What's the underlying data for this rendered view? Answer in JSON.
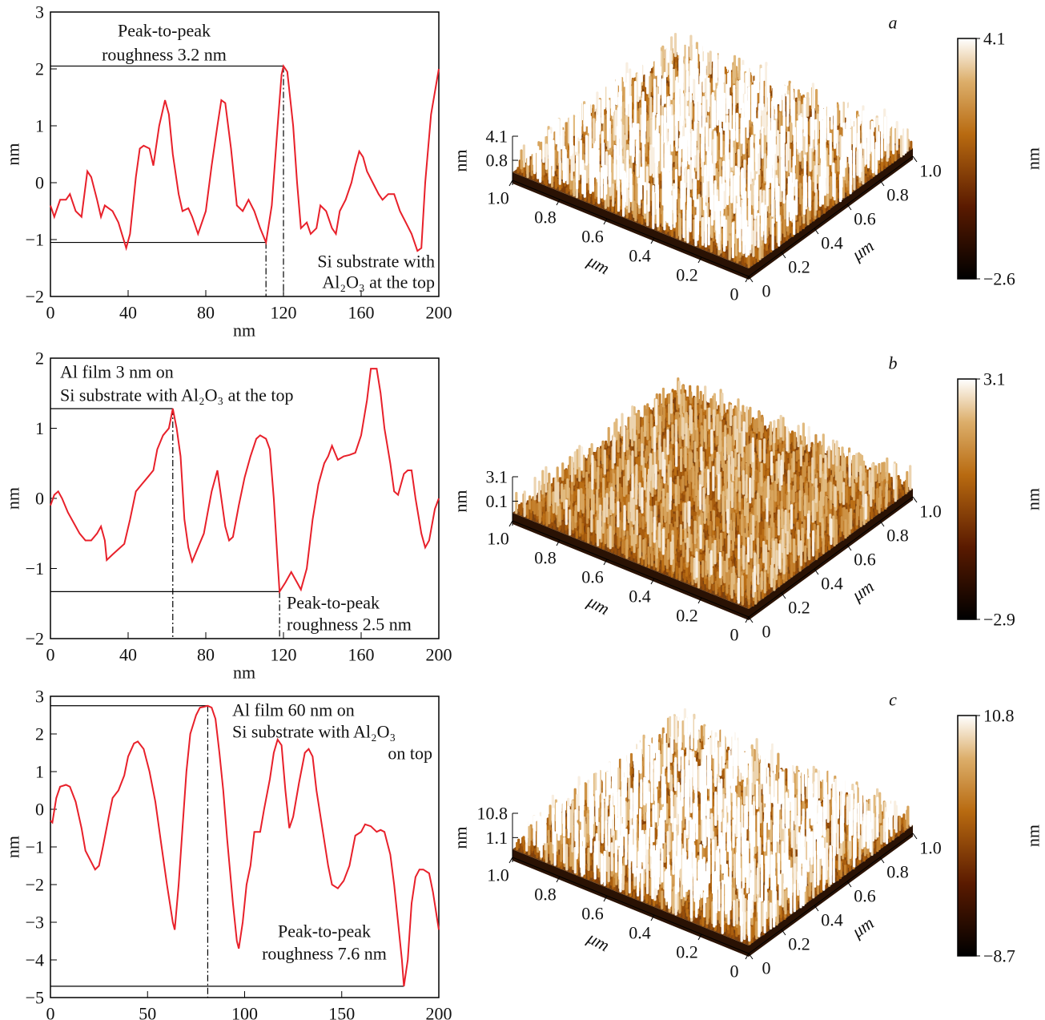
{
  "chart_data": [
    {
      "type": "line",
      "xlabel": "nm",
      "ylabel": "nm",
      "color": "#e8202a",
      "xlim": [
        0,
        200
      ],
      "ylim": [
        -2,
        3
      ],
      "xticks": [
        0,
        40,
        80,
        120,
        160,
        200
      ],
      "yticks": [
        {
          "value": -2,
          "label": "−2"
        },
        {
          "value": -1,
          "label": "−1"
        },
        0,
        1,
        2,
        3
      ],
      "x": [
        0,
        2,
        5,
        8,
        10,
        13,
        16,
        19,
        21,
        24,
        26,
        28,
        32,
        35,
        39,
        41,
        44,
        46,
        48,
        51,
        53,
        56,
        59,
        61,
        63,
        66,
        68,
        71,
        73,
        76,
        80,
        83,
        86,
        88,
        90,
        93,
        96,
        99,
        102,
        105,
        108,
        111,
        114,
        117,
        119,
        120,
        122,
        125,
        127,
        129,
        132,
        134,
        137,
        139,
        142,
        145,
        147,
        149,
        152,
        155,
        157,
        159,
        161,
        163,
        166,
        169,
        171,
        174,
        177,
        180,
        183,
        186,
        189,
        191,
        193,
        196,
        200
      ],
      "values": [
        -0.4,
        -0.6,
        -0.3,
        -0.3,
        -0.2,
        -0.5,
        -0.6,
        0.2,
        0.1,
        -0.3,
        -0.6,
        -0.4,
        -0.5,
        -0.7,
        -1.15,
        -0.9,
        0.1,
        0.6,
        0.65,
        0.6,
        0.3,
        1.0,
        1.45,
        1.2,
        0.5,
        -0.2,
        -0.5,
        -0.45,
        -0.6,
        -0.9,
        -0.5,
        0.3,
        1.0,
        1.45,
        1.4,
        0.6,
        -0.4,
        -0.5,
        -0.3,
        -0.5,
        -0.8,
        -1.05,
        -0.4,
        1.0,
        1.9,
        2.05,
        1.95,
        1.0,
        0.0,
        -0.8,
        -0.7,
        -0.9,
        -0.8,
        -0.4,
        -0.5,
        -0.8,
        -0.9,
        -0.5,
        -0.3,
        0.0,
        0.3,
        0.55,
        0.45,
        0.2,
        0.0,
        -0.2,
        -0.3,
        -0.2,
        -0.2,
        -0.5,
        -0.7,
        -0.9,
        -1.2,
        -1.15,
        0.0,
        1.2,
        2.0
      ],
      "markers": [
        {
          "x": 120,
          "y": 2.05,
          "drop": true
        },
        {
          "x": 111,
          "y": -1.05,
          "drop": true
        }
      ],
      "annotations": [
        [
          "Peak-to-peak",
          "roughness 3.2 nm"
        ],
        [
          "Si substrate with",
          "Al₂O₃ at the top"
        ]
      ]
    },
    {
      "type": "surface",
      "panel_label": "a",
      "x_label": "μm",
      "y_label": "μm",
      "z_label": "nm",
      "xlim": [
        0,
        1
      ],
      "ylim": [
        0,
        1
      ],
      "zlim": [
        -2.6,
        4.1
      ],
      "xticks": [
        {
          "value": 1,
          "label": "1.0"
        },
        0.8,
        0.6,
        0.4,
        0.2,
        0
      ],
      "yticks": [
        0,
        0.2,
        0.4,
        0.6,
        0.8,
        {
          "value": 1,
          "label": "1.0"
        }
      ],
      "zticks": [
        4.1,
        0.8
      ],
      "colorbar_ticks": [
        4.1,
        {
          "value": -2.6,
          "label": "−2.6"
        }
      ],
      "colorbar_label": "nm"
    },
    {
      "type": "line",
      "xlabel": "nm",
      "ylabel": "nm",
      "color": "#e8202a",
      "xlim": [
        0,
        200
      ],
      "ylim": [
        -2,
        2
      ],
      "xticks": [
        0,
        40,
        80,
        120,
        160,
        200
      ],
      "yticks": [
        {
          "value": -2,
          "label": "−2"
        },
        {
          "value": -1,
          "label": "−1"
        },
        0,
        1,
        2
      ],
      "x": [
        0,
        2,
        4,
        6,
        9,
        12,
        15,
        18,
        21,
        24,
        26,
        28,
        29,
        32,
        36,
        38,
        41,
        44,
        47,
        50,
        53,
        55,
        58,
        61,
        63,
        65,
        67,
        69,
        71,
        73,
        76,
        79,
        81,
        83,
        86,
        88,
        90,
        92,
        94,
        97,
        100,
        103,
        106,
        108,
        111,
        113,
        115,
        117,
        118,
        121,
        124,
        127,
        129,
        132,
        135,
        138,
        141,
        143,
        145,
        148,
        151,
        154,
        157,
        160,
        163,
        165,
        168,
        170,
        172,
        175,
        177,
        179,
        182,
        184,
        186,
        188,
        191,
        193,
        195,
        198,
        200
      ],
      "values": [
        -0.1,
        0.05,
        0.1,
        0.0,
        -0.2,
        -0.35,
        -0.5,
        -0.6,
        -0.6,
        -0.5,
        -0.4,
        -0.6,
        -0.88,
        -0.8,
        -0.7,
        -0.65,
        -0.3,
        0.1,
        0.2,
        0.3,
        0.4,
        0.7,
        0.9,
        1.0,
        1.28,
        1.0,
        0.6,
        -0.3,
        -0.7,
        -0.9,
        -0.7,
        -0.5,
        -0.2,
        0.1,
        0.4,
        0.0,
        -0.4,
        -0.6,
        -0.55,
        -0.1,
        0.3,
        0.6,
        0.85,
        0.9,
        0.85,
        0.7,
        0.0,
        -0.9,
        -1.33,
        -1.2,
        -1.05,
        -1.2,
        -1.3,
        -1.0,
        -0.3,
        0.2,
        0.5,
        0.6,
        0.75,
        0.55,
        0.6,
        0.62,
        0.65,
        0.9,
        1.4,
        1.85,
        1.85,
        1.5,
        1.0,
        0.5,
        0.1,
        0.05,
        0.35,
        0.4,
        0.4,
        0.0,
        -0.5,
        -0.7,
        -0.6,
        -0.15,
        0.0
      ],
      "markers": [
        {
          "x": 63,
          "y": 1.28,
          "drop": true
        },
        {
          "x": 118,
          "y": -1.33,
          "drop": true
        }
      ],
      "annotations": [
        [
          "Al film 3 nm on",
          "Si substrate with Al₂O₃ at the top"
        ],
        [
          "Peak-to-peak",
          "roughness 2.5 nm"
        ]
      ]
    },
    {
      "type": "surface",
      "panel_label": "b",
      "x_label": "μm",
      "y_label": "μm",
      "z_label": "nm",
      "xlim": [
        0,
        1
      ],
      "ylim": [
        0,
        1
      ],
      "zlim": [
        -2.9,
        3.1
      ],
      "xticks": [
        {
          "value": 1,
          "label": "1.0"
        },
        0.8,
        0.6,
        0.4,
        0.2,
        0
      ],
      "yticks": [
        0,
        0.2,
        0.4,
        0.6,
        0.8,
        {
          "value": 1,
          "label": "1.0"
        }
      ],
      "zticks": [
        3.1,
        0.1
      ],
      "colorbar_ticks": [
        3.1,
        {
          "value": -2.9,
          "label": "−2.9"
        }
      ],
      "colorbar_label": "nm"
    },
    {
      "type": "line",
      "xlabel": "nm",
      "ylabel": "nm",
      "color": "#e8202a",
      "xlim": [
        0,
        200
      ],
      "ylim": [
        -5,
        3
      ],
      "xticks": [
        0,
        50,
        100,
        150,
        200
      ],
      "yticks": [
        {
          "value": -5,
          "label": "−5"
        },
        {
          "value": -4,
          "label": "−4"
        },
        {
          "value": -3,
          "label": "−3"
        },
        {
          "value": -2,
          "label": "−2"
        },
        {
          "value": -1,
          "label": "−1"
        },
        0,
        1,
        2,
        3
      ],
      "x": [
        0,
        1,
        3,
        5,
        8,
        10,
        13,
        16,
        18,
        20,
        23,
        25,
        27,
        30,
        32,
        35,
        38,
        40,
        43,
        45,
        48,
        51,
        54,
        57,
        60,
        63,
        64,
        66,
        68,
        70,
        72,
        75,
        77,
        79,
        81,
        83,
        85,
        87,
        89,
        91,
        94,
        96,
        97,
        99,
        101,
        103,
        105,
        108,
        110,
        113,
        115,
        117,
        119,
        121,
        123,
        125,
        128,
        131,
        133,
        135,
        137,
        140,
        143,
        145,
        148,
        151,
        154,
        157,
        160,
        162,
        165,
        168,
        170,
        172,
        175,
        177,
        179,
        181,
        182,
        184,
        186,
        188,
        190,
        192,
        195,
        197,
        200
      ],
      "values": [
        -0.3,
        -0.35,
        0.3,
        0.6,
        0.65,
        0.6,
        0.2,
        -0.5,
        -1.1,
        -1.3,
        -1.6,
        -1.5,
        -1.0,
        -0.2,
        0.3,
        0.5,
        0.9,
        1.4,
        1.75,
        1.8,
        1.6,
        1.0,
        0.2,
        -0.9,
        -2.0,
        -3.0,
        -3.2,
        -2.0,
        -0.5,
        1.0,
        2.0,
        2.5,
        2.7,
        2.72,
        2.75,
        2.7,
        2.4,
        1.5,
        0.5,
        -0.8,
        -2.5,
        -3.5,
        -3.7,
        -3.0,
        -2.0,
        -1.5,
        -0.6,
        -0.6,
        0.0,
        0.8,
        1.5,
        1.85,
        1.7,
        0.5,
        -0.5,
        -0.2,
        0.7,
        1.5,
        1.6,
        1.4,
        0.5,
        -0.5,
        -1.5,
        -2.0,
        -2.1,
        -1.9,
        -1.5,
        -0.7,
        -0.6,
        -0.4,
        -0.45,
        -0.6,
        -0.55,
        -0.6,
        -1.2,
        -2.0,
        -3.0,
        -4.0,
        -4.7,
        -4.0,
        -2.5,
        -1.8,
        -1.6,
        -1.6,
        -1.7,
        -2.2,
        -3.2
      ],
      "markers": [
        {
          "x": 81,
          "y": 2.75,
          "drop": true
        },
        {
          "x": 182,
          "y": -4.7,
          "drop": false
        }
      ],
      "annotations": [
        [
          "Al film 60 nm on",
          "Si substrate with Al₂O₃",
          "on top"
        ],
        [
          "Peak-to-peak",
          "roughness 7.6 nm"
        ]
      ]
    },
    {
      "type": "surface",
      "panel_label": "c",
      "x_label": "μm",
      "y_label": "μm",
      "z_label": "nm",
      "xlim": [
        0,
        1
      ],
      "ylim": [
        0,
        1
      ],
      "zlim": [
        -8.7,
        10.8
      ],
      "xticks": [
        {
          "value": 1,
          "label": "1.0"
        },
        0.8,
        0.6,
        0.4,
        0.2,
        0
      ],
      "yticks": [
        0,
        0.2,
        0.4,
        0.6,
        0.8,
        {
          "value": 1,
          "label": "1.0"
        }
      ],
      "zticks": [
        10.8,
        1.1
      ],
      "colorbar_ticks": [
        10.8,
        {
          "value": -8.7,
          "label": "−8.7"
        }
      ],
      "colorbar_label": "nm"
    }
  ]
}
